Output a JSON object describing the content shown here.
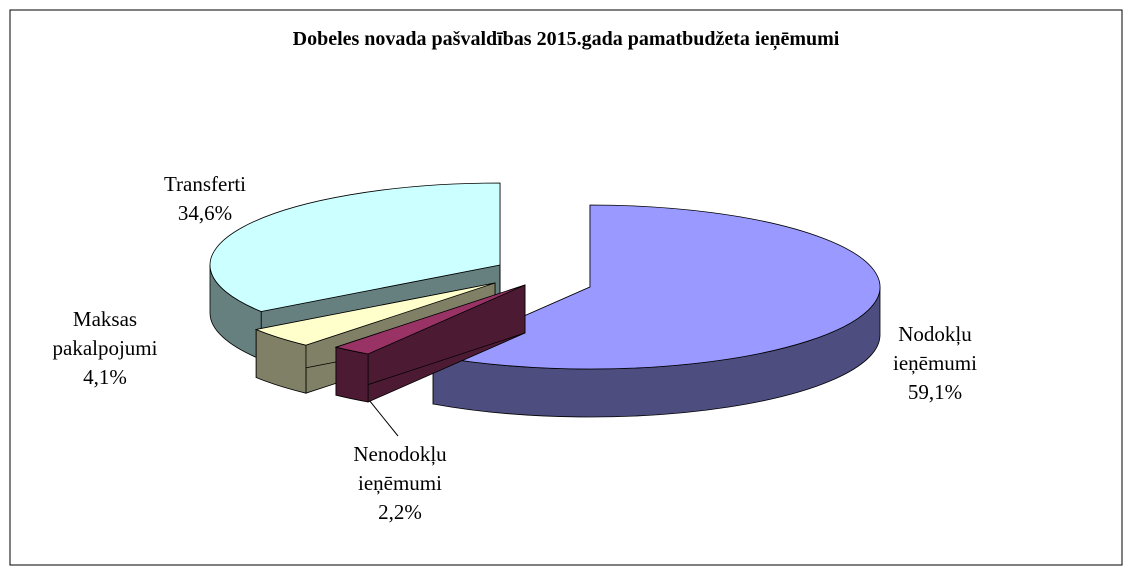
{
  "chart_data": {
    "type": "pie3d",
    "title": "Dobeles novada pašvaldības 2015.gada pamatbudžeta ieņēmumi",
    "categories": [
      "Nodokļu ieņēmumi",
      "Nenodokļu ieņēmumi",
      "Maksas pakalpojumi",
      "Transferti"
    ],
    "values": [
      59.1,
      2.2,
      4.1,
      34.6
    ],
    "value_labels": [
      "59,1%",
      "2,2%",
      "4,1%",
      "34,6%"
    ],
    "colors": [
      "#9999ff",
      "#993366",
      "#ffffcc",
      "#ccffff"
    ]
  }
}
